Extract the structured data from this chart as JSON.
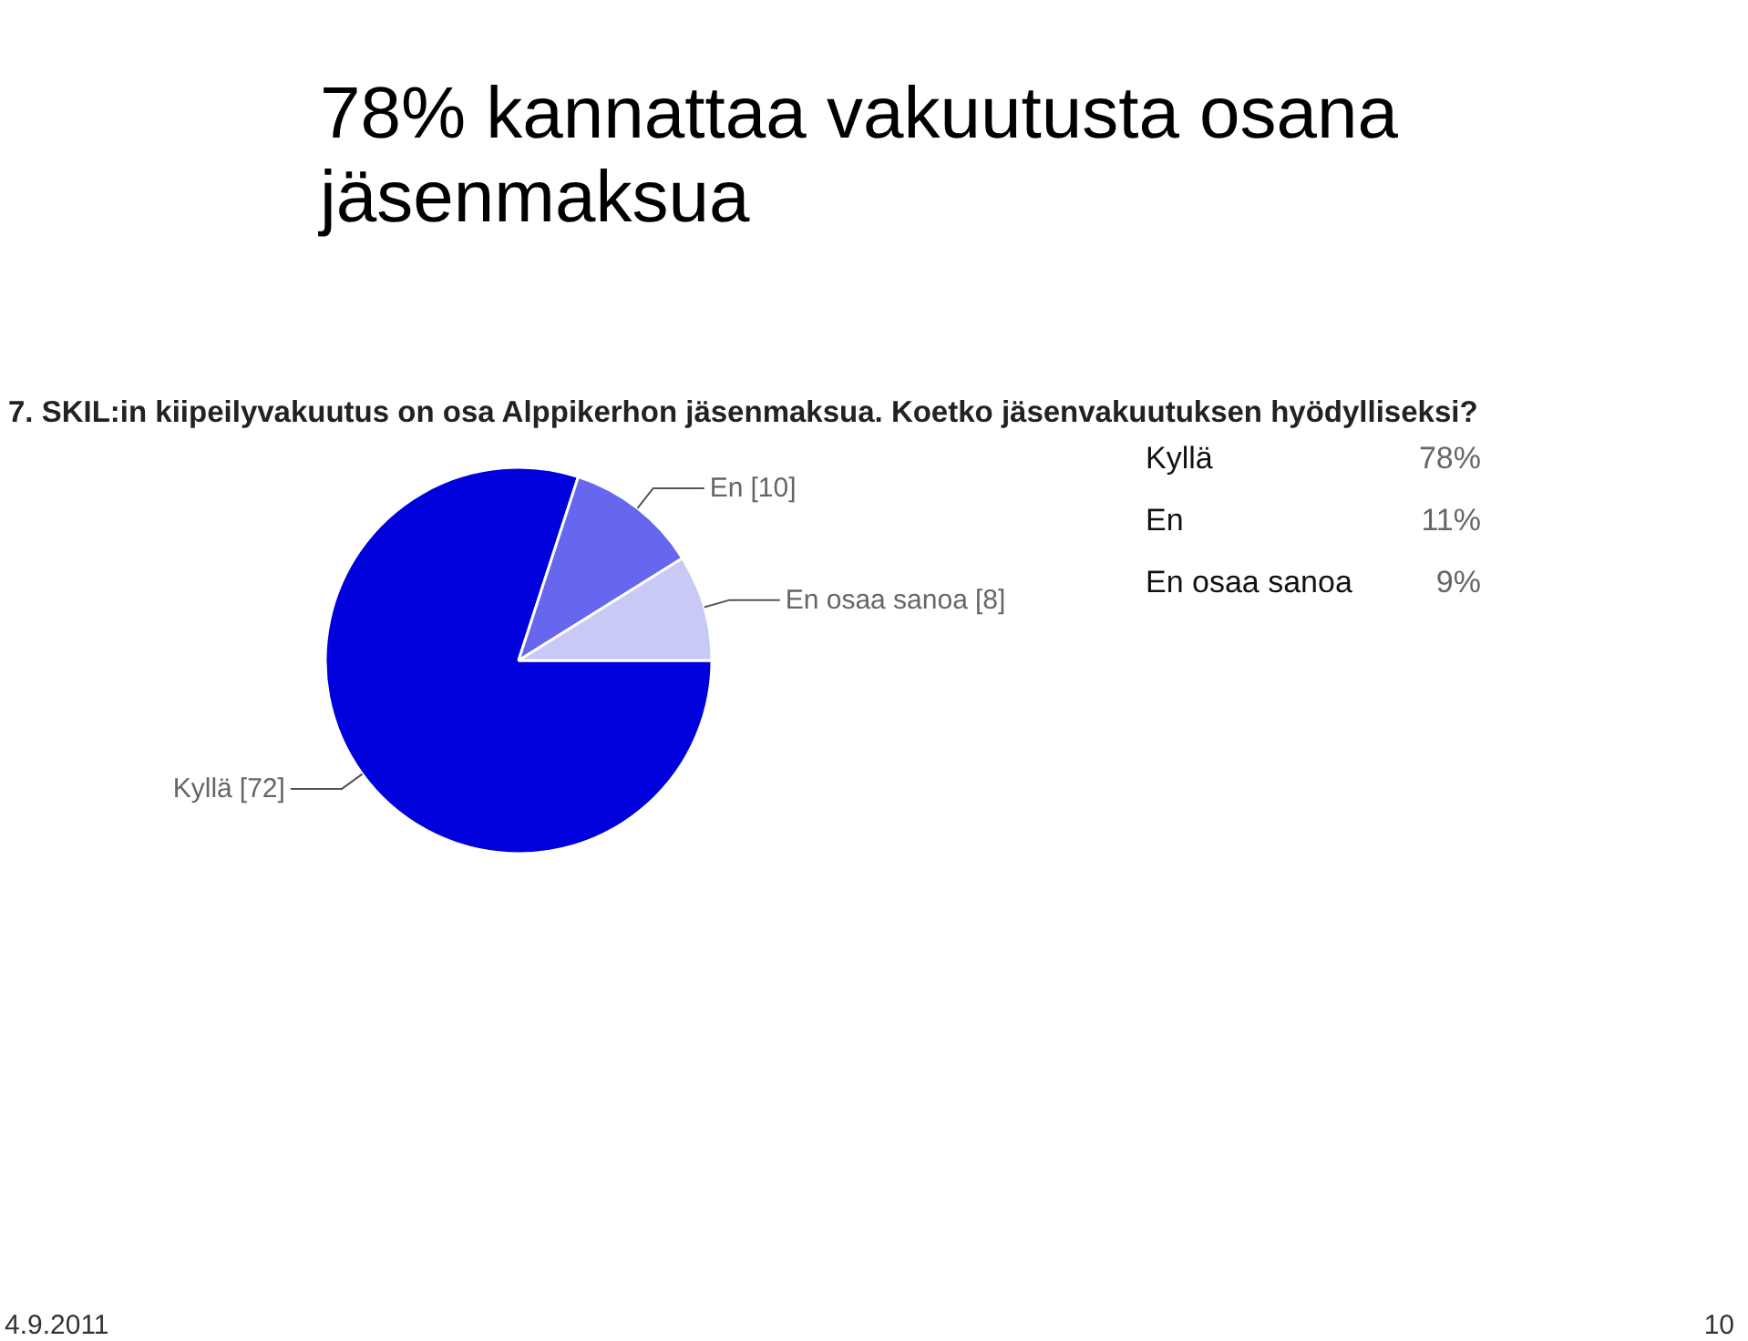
{
  "chart_data": [
    {
      "type": "pie",
      "title": "78% kannattaa vakuutusta osana jäsenmaksua",
      "subtitle": "7. SKIL:in kiipeilyvakuutus on osa Alppikerhon jäsenmaksua. Koetko jäsenvakuutuksen hyödylliseksi?",
      "categories": [
        "Kyllä",
        "En",
        "En osaa sanoa"
      ],
      "values": [
        72,
        10,
        8
      ],
      "colors": [
        "#0000dd",
        "#6666ee",
        "#c9c9f5"
      ],
      "value_labels": [
        "[72]",
        "[10]",
        "[8]"
      ],
      "annotations": [
        "4.9.2011",
        "10"
      ]
    },
    {
      "type": "other",
      "categories": [
        "Kyllä",
        "En",
        "En osaa sanoa"
      ],
      "values": [
        78,
        11,
        9
      ],
      "value_labels": [
        "78%",
        "11%",
        "9%"
      ]
    }
  ]
}
